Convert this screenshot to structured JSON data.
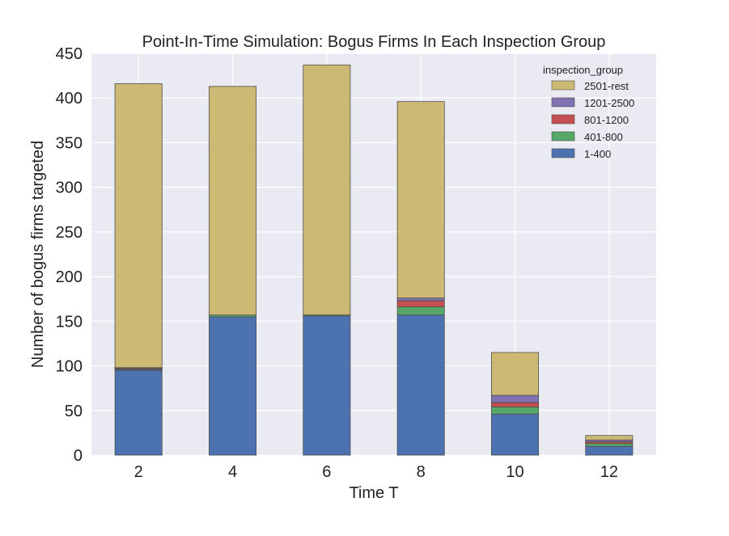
{
  "chart_data": {
    "type": "bar",
    "stacked": true,
    "title": "Point-In-Time Simulation: Bogus Firms In Each Inspection Group",
    "xlabel": "Time T",
    "ylabel": "Number of bogus firms targeted",
    "ylim": [
      0,
      450
    ],
    "yticks": [
      0,
      50,
      100,
      150,
      200,
      250,
      300,
      350,
      400,
      450
    ],
    "grid": true,
    "legend_title": "inspection_group",
    "legend_placement": "top-right",
    "categories": [
      "2",
      "4",
      "6",
      "8",
      "10",
      "12"
    ],
    "series": [
      {
        "name": "1-400",
        "color": "#4c72b0",
        "values": [
          95,
          155,
          156,
          157,
          46,
          10
        ]
      },
      {
        "name": "401-800",
        "color": "#55a868",
        "values": [
          1,
          2,
          1,
          9,
          8,
          3
        ]
      },
      {
        "name": "801-1200",
        "color": "#c44e52",
        "values": [
          1,
          0,
          0,
          7,
          5,
          2
        ]
      },
      {
        "name": "1201-2500",
        "color": "#8172b2",
        "values": [
          1,
          0,
          0,
          3,
          8,
          2
        ]
      },
      {
        "name": "2501-rest",
        "color": "#ccb974",
        "values": [
          318,
          256,
          280,
          220,
          48,
          5
        ]
      }
    ]
  },
  "style": {
    "plot_background": "#eaeaf2",
    "grid_color": "#ffffff",
    "bar_edge": "#4d4d4d"
  }
}
